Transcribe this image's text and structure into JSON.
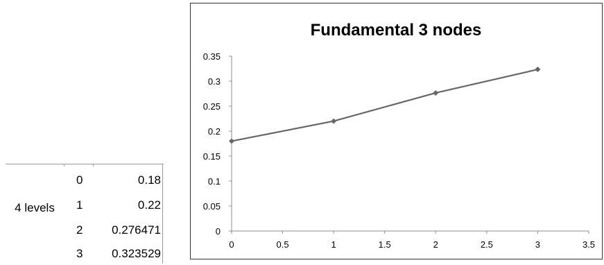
{
  "table": {
    "group_label": "4 levels",
    "rows": [
      {
        "index": "0",
        "value": "0.18"
      },
      {
        "index": "1",
        "value": "0.22"
      },
      {
        "index": "2",
        "value": "0.276471"
      },
      {
        "index": "3",
        "value": "0.323529"
      }
    ]
  },
  "chart_data": {
    "type": "line",
    "title": "Fundamental 3 nodes",
    "xlabel": "",
    "ylabel": "",
    "xlim": [
      0,
      3.5
    ],
    "ylim": [
      0,
      0.35
    ],
    "x_ticks": [
      "0",
      "0.5",
      "1",
      "1.5",
      "2",
      "2.5",
      "3",
      "3.5"
    ],
    "y_ticks": [
      "0",
      "0.05",
      "0.1",
      "0.15",
      "0.2",
      "0.25",
      "0.3",
      "0.35"
    ],
    "grid": false,
    "series": [
      {
        "x": [
          0,
          1,
          2,
          3
        ],
        "values": [
          0.18,
          0.22,
          0.276471,
          0.323529
        ],
        "color": "#666666",
        "marker": "diamond"
      }
    ]
  }
}
